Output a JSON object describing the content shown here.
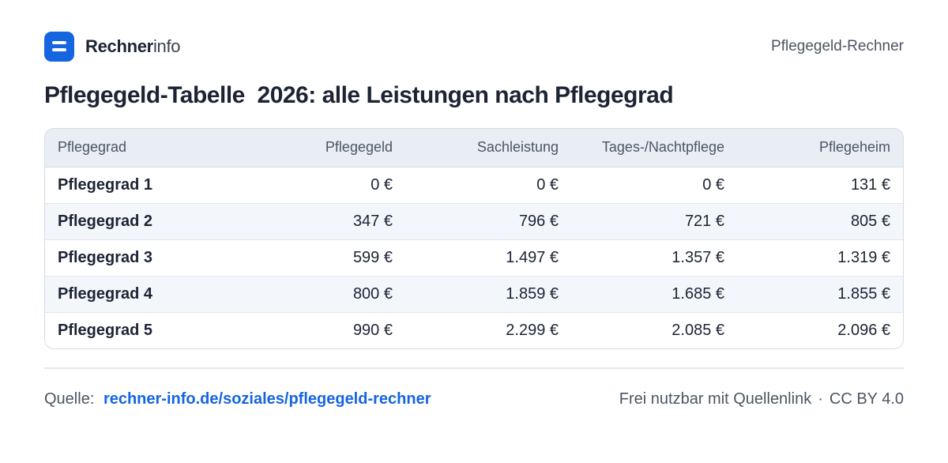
{
  "header": {
    "logo_bold": "Rechner",
    "logo_light": "info",
    "tool_name": "Pflegegeld-Rechner"
  },
  "title": "Pflegegeld-Tabelle  2026: alle Leistungen nach Pflegegrad",
  "table": {
    "headers": [
      "Pflegegrad",
      "Pflegegeld",
      "Sachleistung",
      "Tages-/Nachtpflege",
      "Pflegeheim"
    ],
    "rows": [
      [
        "Pflegegrad 1",
        "0 €",
        "0 €",
        "0 €",
        "131 €"
      ],
      [
        "Pflegegrad 2",
        "347 €",
        "796 €",
        "721 €",
        "805 €"
      ],
      [
        "Pflegegrad 3",
        "599 €",
        "1.497 €",
        "1.357 €",
        "1.319 €"
      ],
      [
        "Pflegegrad 4",
        "800 €",
        "1.859 €",
        "1.685 €",
        "1.855 €"
      ],
      [
        "Pflegegrad 5",
        "990 €",
        "2.299 €",
        "2.085 €",
        "2.096 €"
      ]
    ]
  },
  "footer": {
    "source_label": "Quelle:",
    "source_link": "rechner-info.de/soziales/pflegegeld-rechner",
    "license_text": "Frei nutzbar mit Quellenlink",
    "separator": "·",
    "license_name": "CC BY 4.0"
  },
  "colors": {
    "accent": "#1565e0",
    "header_row": "#e9eef5",
    "zebra_row": "#f3f6fa"
  },
  "icons": {
    "logo": "rechnerinfo-logo-icon"
  }
}
